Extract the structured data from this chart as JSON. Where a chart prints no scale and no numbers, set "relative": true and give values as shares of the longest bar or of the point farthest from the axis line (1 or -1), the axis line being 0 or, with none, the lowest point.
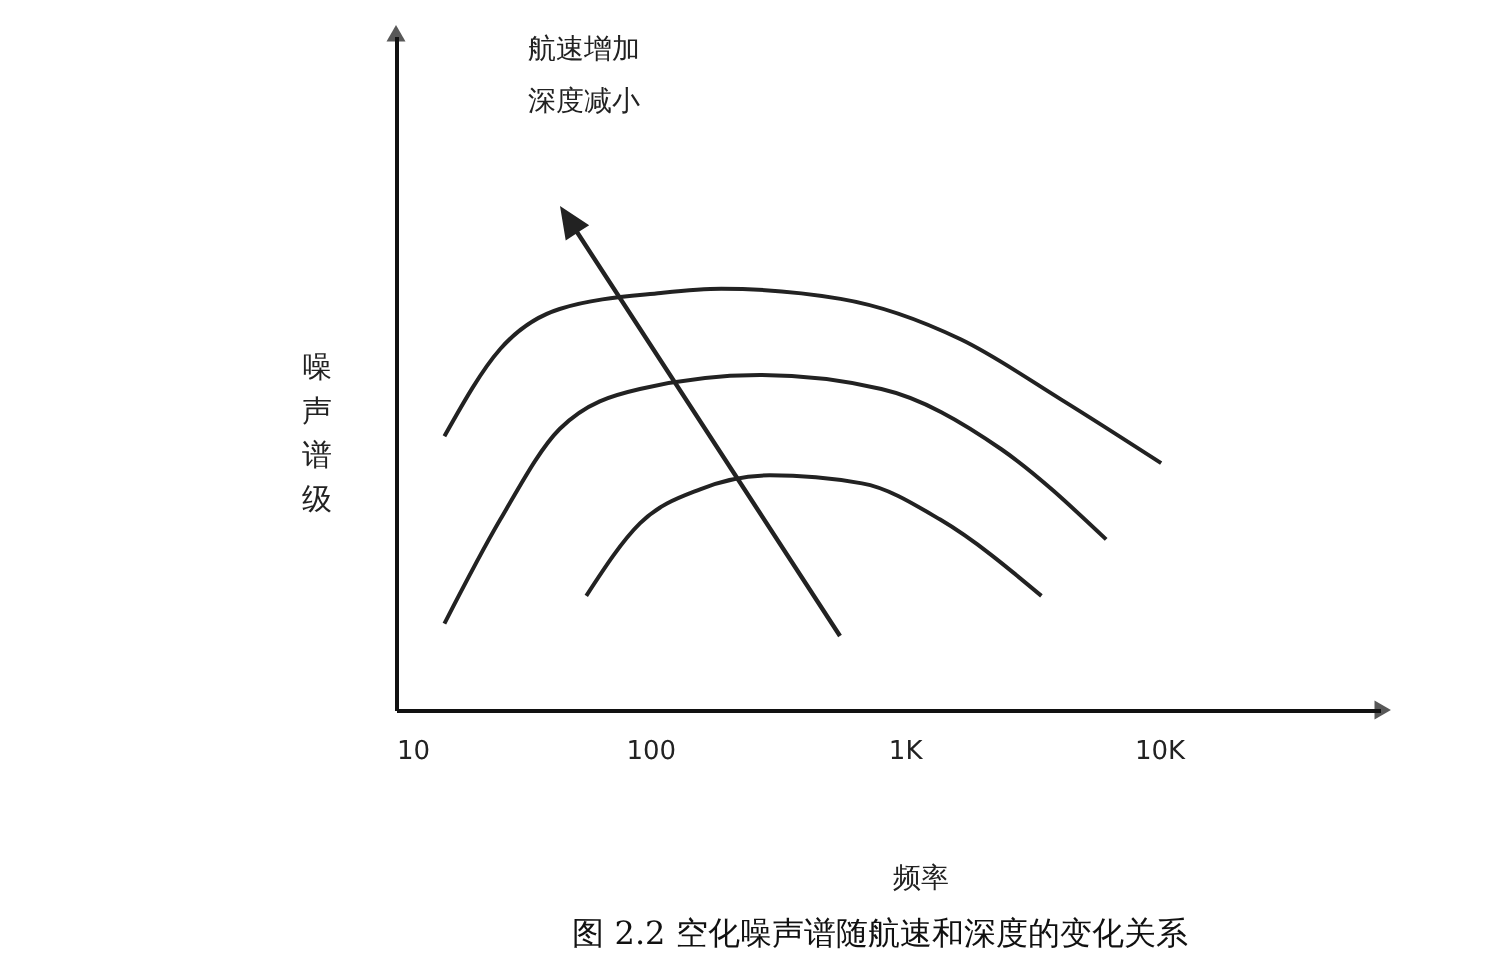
{
  "chart_data": {
    "type": "line",
    "relative": true,
    "xlabel": "频率",
    "ylabel": "噪声谱级",
    "log": "x",
    "xlim": [
      10,
      74000
    ],
    "xticks": [
      10,
      100,
      {
        "value": 1000,
        "label": "1K"
      },
      {
        "value": 10000,
        "label": "10K"
      }
    ],
    "tick_labels": "x",
    "grid": false,
    "marker": "none",
    "line_style": "solid",
    "annotations": [
      "航速增加深度减小",
      "图 2.2 空化噪声谱随航速和深度的变化关系"
    ],
    "series": [
      {
        "color": "#222222",
        "x": [
          15.5,
          25.7,
          44,
          110,
          190,
          560,
          1660,
          4100,
          10200
        ],
        "values": [
          0.65,
          0.857,
          0.952,
          0.99,
          1.0,
          0.976,
          0.88,
          0.738,
          0.586
        ]
      },
      {
        "color": "#222222",
        "x": [
          15.5,
          25.7,
          44,
          91,
          270,
          810,
          2400,
          6200
        ],
        "values": [
          0.205,
          0.452,
          0.667,
          0.762,
          0.795,
          0.762,
          0.619,
          0.405
        ]
      },
      {
        "color": "#222222",
        "x": [
          56,
          91,
          157,
          295,
          680,
          1380,
          3450
        ],
        "values": [
          0.271,
          0.443,
          0.524,
          0.557,
          0.538,
          0.452,
          0.271
        ]
      }
    ]
  }
}
